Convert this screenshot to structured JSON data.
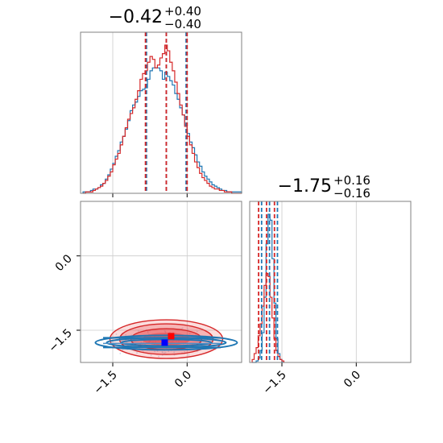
{
  "chart_data": [
    {
      "type": "histogram",
      "panel": "marginal-param-1",
      "title": {
        "value": "−0.42",
        "upper": "+0.40",
        "lower": "−0.40"
      },
      "xlim": [
        -2.15,
        1.1
      ],
      "grid": true,
      "quantiles": {
        "series-1": [
          -0.82,
          -0.42,
          -0.02
        ],
        "series-2": [
          -0.84,
          -0.42,
          0.0
        ]
      },
      "series": [
        {
          "name": "",
          "color": "#1f77b4",
          "bins": [
            -2.1,
            -2.05,
            -2.0,
            -1.95,
            -1.9,
            -1.85,
            -1.8,
            -1.75,
            -1.7,
            -1.65,
            -1.6,
            -1.55,
            -1.5,
            -1.45,
            -1.4,
            -1.35,
            -1.3,
            -1.25,
            -1.2,
            -1.15,
            -1.1,
            -1.05,
            -1.0,
            -0.95,
            -0.9,
            -0.85,
            -0.8,
            -0.75,
            -0.7,
            -0.65,
            -0.6,
            -0.55,
            -0.5,
            -0.45,
            -0.4,
            -0.35,
            -0.3,
            -0.25,
            -0.2,
            -0.15,
            -0.1,
            -0.05,
            0.0,
            0.05,
            0.1,
            0.15,
            0.2,
            0.25,
            0.3,
            0.35,
            0.4,
            0.45,
            0.5,
            0.55,
            0.6,
            0.65,
            0.7,
            0.75,
            0.8,
            0.85,
            0.9,
            0.95,
            1.0,
            1.05,
            1.1
          ],
          "counts": [
            1,
            1,
            1,
            2,
            3,
            3,
            4,
            6,
            7,
            10,
            13,
            17,
            21,
            26,
            30,
            36,
            40,
            45,
            51,
            58,
            62,
            64,
            68,
            72,
            73,
            74,
            80,
            86,
            88,
            88,
            88,
            86,
            80,
            85,
            82,
            79,
            76,
            70,
            66,
            60,
            55,
            48,
            42,
            36,
            32,
            27,
            22,
            19,
            15,
            12,
            10,
            8,
            6,
            5,
            4,
            3,
            2,
            2,
            1,
            1,
            1,
            1,
            1,
            1
          ]
        },
        {
          "name": "",
          "color": "#d62728",
          "bins": [
            -2.1,
            -2.05,
            -2.0,
            -1.95,
            -1.9,
            -1.85,
            -1.8,
            -1.75,
            -1.7,
            -1.65,
            -1.6,
            -1.55,
            -1.5,
            -1.45,
            -1.4,
            -1.35,
            -1.3,
            -1.25,
            -1.2,
            -1.15,
            -1.1,
            -1.05,
            -1.0,
            -0.95,
            -0.9,
            -0.85,
            -0.8,
            -0.75,
            -0.7,
            -0.65,
            -0.6,
            -0.55,
            -0.5,
            -0.45,
            -0.4,
            -0.35,
            -0.3,
            -0.25,
            -0.2,
            -0.15,
            -0.1,
            -0.05,
            0.0,
            0.05,
            0.1,
            0.15,
            0.2,
            0.25,
            0.3,
            0.35,
            0.4,
            0.45,
            0.5,
            0.55,
            0.6,
            0.65,
            0.7,
            0.75,
            0.8,
            0.85,
            0.9,
            0.95,
            1.0,
            1.05,
            1.1
          ],
          "counts": [
            0,
            1,
            1,
            1,
            2,
            3,
            4,
            5,
            7,
            9,
            12,
            15,
            20,
            24,
            28,
            34,
            40,
            46,
            52,
            56,
            60,
            66,
            72,
            80,
            84,
            86,
            92,
            96,
            94,
            88,
            90,
            95,
            98,
            104,
            100,
            92,
            86,
            78,
            70,
            62,
            55,
            47,
            40,
            34,
            28,
            22,
            18,
            14,
            11,
            9,
            7,
            5,
            4,
            3,
            3,
            2,
            2,
            1,
            1,
            1,
            0,
            0,
            0,
            0
          ]
        }
      ]
    },
    {
      "type": "contour",
      "panel": "2d-param-1-vs-param-2",
      "xlim": [
        -2.15,
        1.1
      ],
      "ylim": [
        -2.15,
        1.1
      ],
      "xticks": [
        "−1.5",
        "0.0"
      ],
      "yticks": [
        "0.0",
        "−1.5"
      ],
      "grid": true,
      "series": [
        {
          "name": "",
          "color": "#1f77b4",
          "peak": [
            -0.42,
            -1.75
          ]
        },
        {
          "name": "",
          "color": "#d62728",
          "peak": [
            -0.42,
            -1.62
          ]
        }
      ]
    },
    {
      "type": "histogram",
      "panel": "marginal-param-2",
      "title": {
        "value": "−1.75",
        "upper": "+0.16",
        "lower": "−0.16"
      },
      "xlim": [
        -2.15,
        1.1
      ],
      "xticks": [
        "−1.5",
        "0.0"
      ],
      "grid": true,
      "quantiles": {
        "series-1": [
          -1.91,
          -1.75,
          -1.59
        ],
        "series-2": [
          -1.97,
          -1.81,
          -1.65
        ]
      },
      "series": [
        {
          "name": "",
          "color": "#1f77b4",
          "bins": [
            -2.1,
            -2.06,
            -2.02,
            -1.98,
            -1.94,
            -1.9,
            -1.86,
            -1.82,
            -1.78,
            -1.74,
            -1.7,
            -1.66,
            -1.62,
            -1.58,
            -1.54,
            -1.5,
            -1.46
          ],
          "counts": [
            0,
            0,
            1,
            3,
            8,
            20,
            44,
            80,
            100,
            96,
            70,
            40,
            16,
            6,
            2,
            0
          ]
        },
        {
          "name": "",
          "color": "#d62728",
          "bins": [
            -2.1,
            -2.06,
            -2.02,
            -1.98,
            -1.94,
            -1.9,
            -1.86,
            -1.82,
            -1.78,
            -1.74,
            -1.7,
            -1.66,
            -1.62,
            -1.58,
            -1.54,
            -1.5,
            -1.46
          ],
          "counts": [
            2,
            6,
            10,
            18,
            26,
            38,
            52,
            60,
            58,
            44,
            30,
            16,
            8,
            4,
            2,
            1
          ]
        }
      ]
    }
  ]
}
